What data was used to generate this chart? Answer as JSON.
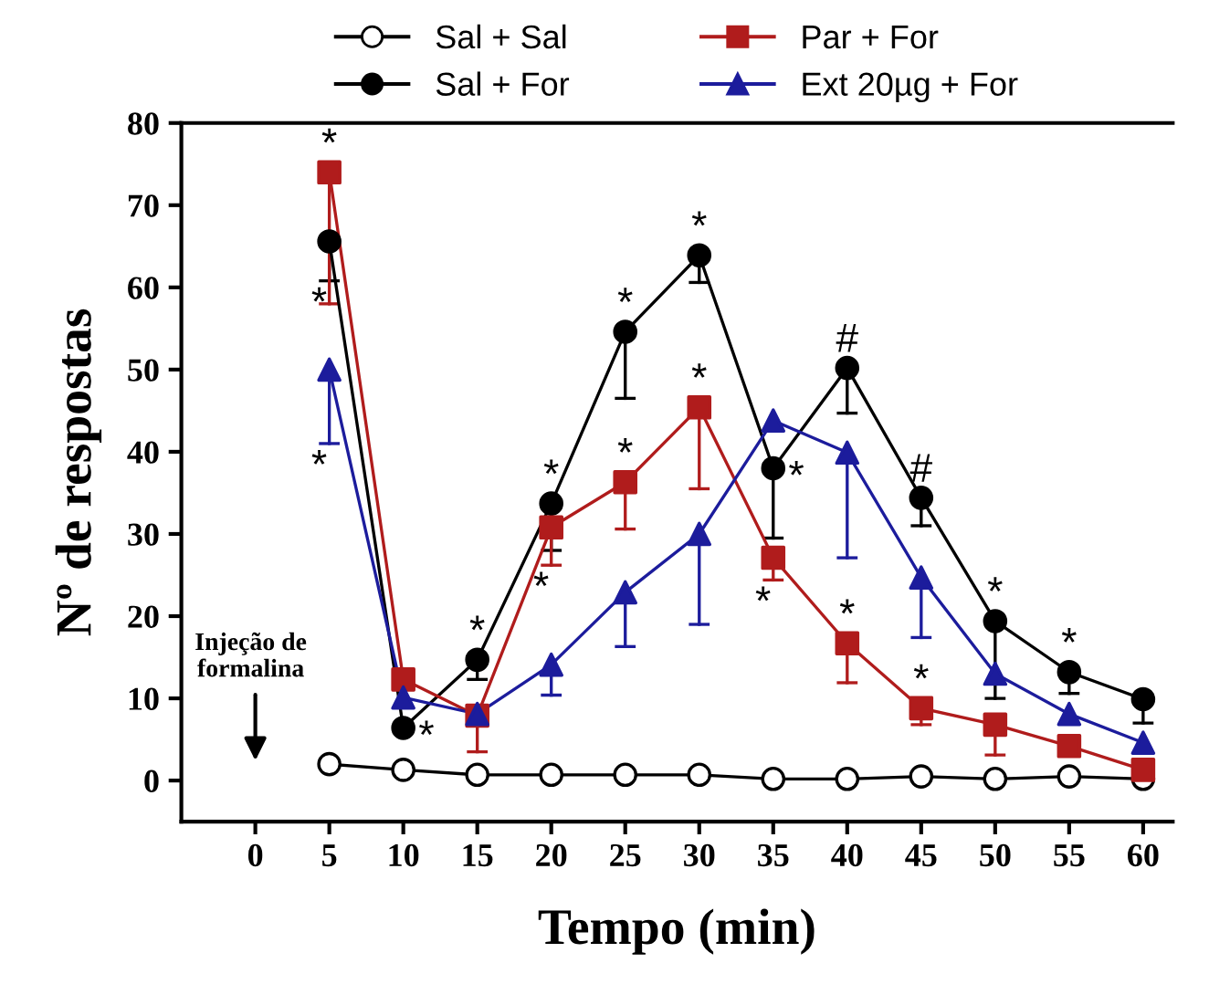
{
  "chart_data": {
    "type": "line",
    "xlabel": "Tempo (min)",
    "ylabel": "Nº de respostas",
    "x": [
      5,
      10,
      15,
      20,
      25,
      30,
      35,
      40,
      45,
      50,
      55,
      60
    ],
    "xlim": [
      -5,
      62
    ],
    "xticks": [
      0,
      5,
      10,
      15,
      20,
      25,
      30,
      35,
      40,
      45,
      50,
      55,
      60
    ],
    "ylim": [
      -5,
      80
    ],
    "yticks": [
      0,
      10,
      20,
      30,
      40,
      50,
      60,
      70,
      80
    ],
    "grid": false,
    "legend": "top",
    "line_style": "solid",
    "series": [
      {
        "name": "Sal + Sal",
        "color": "#000000",
        "marker": "circle",
        "colors": [
          "#ffffff",
          "#ffffff",
          "#ffffff",
          "#ffffff",
          "#ffffff",
          "#ffffff",
          "#ffffff",
          "#ffffff",
          "#ffffff",
          "#ffffff",
          "#ffffff",
          "#ffffff"
        ],
        "values": [
          2,
          1.3,
          0.7,
          0.7,
          0.7,
          0.7,
          0.2,
          0.2,
          0.5,
          0.2,
          0.5,
          0.2
        ]
      },
      {
        "name": "Sal + For",
        "color": "#000000",
        "marker": "circle",
        "values": [
          65.6,
          6.4,
          14.7,
          33.7,
          54.6,
          63.9,
          38,
          50.2,
          34.4,
          19.4,
          13.2,
          9.9
        ],
        "errors": [
          [
            60.8,
            65.6
          ],
          null,
          [
            12.3,
            14.7
          ],
          [
            28,
            33.7
          ],
          [
            46.5,
            54.6
          ],
          [
            60.6,
            63.9
          ],
          [
            29.5,
            38
          ],
          [
            44.7,
            50.2
          ],
          [
            31,
            34.4
          ],
          [
            10,
            19.4
          ],
          [
            10.6,
            13.2
          ],
          [
            7,
            9.9
          ]
        ]
      },
      {
        "name": "Par + For",
        "color": "#b01c1c",
        "marker": "square",
        "values": [
          74,
          12.3,
          7.9,
          30.8,
          36.3,
          45.4,
          27.1,
          16.7,
          8.8,
          6.8,
          4.2,
          1.3
        ],
        "errors": [
          [
            58,
            74
          ],
          null,
          [
            3.5,
            7.9
          ],
          [
            26.2,
            30.8
          ],
          [
            30.6,
            36.3
          ],
          [
            35.5,
            45.4
          ],
          [
            24.4,
            27.1
          ],
          [
            11.9,
            16.7
          ],
          [
            6.8,
            8.8
          ],
          [
            3.1,
            6.8
          ],
          null,
          null
        ]
      },
      {
        "name": "Ext 20µg + For",
        "color": "#1c1c9c",
        "marker": "triangle",
        "values": [
          50,
          10.1,
          8.1,
          14.1,
          22.9,
          30,
          43.8,
          39.9,
          24.7,
          13,
          8.1,
          4.6
        ],
        "errors": [
          [
            41,
            50
          ],
          null,
          null,
          [
            10.4,
            14.1
          ],
          [
            16.3,
            22.9
          ],
          [
            19,
            30
          ],
          null,
          [
            27.1,
            39.9
          ],
          [
            17.4,
            24.7
          ],
          null,
          null,
          null
        ]
      }
    ],
    "annotations": [
      "Injeção de\nformalina",
      {
        "text": "*",
        "x": 5,
        "y": 74
      },
      {
        "text": "*",
        "x": 5,
        "y": 60.8
      },
      {
        "text": "*",
        "x": 5,
        "y": 41
      },
      {
        "text": "*",
        "x": 10,
        "y": 6.4
      },
      {
        "text": "*",
        "x": 15,
        "y": 14.7
      },
      {
        "text": "*",
        "x": 20,
        "y": 33.7
      },
      {
        "text": "*",
        "x": 20,
        "y": 26.2
      },
      {
        "text": "*",
        "x": 25,
        "y": 54.6
      },
      {
        "text": "*",
        "x": 25,
        "y": 36.3
      },
      {
        "text": "*",
        "x": 30,
        "y": 63.9
      },
      {
        "text": "*",
        "x": 30,
        "y": 45.4
      },
      {
        "text": "*",
        "x": 35,
        "y": 38
      },
      {
        "text": "*",
        "x": 35,
        "y": 24.4
      },
      {
        "text": "#",
        "x": 40,
        "y": 50.2
      },
      {
        "text": "*",
        "x": 40,
        "y": 16.7
      },
      {
        "text": "#",
        "x": 45,
        "y": 34.4
      },
      {
        "text": "*",
        "x": 45,
        "y": 8.8
      },
      {
        "text": "*",
        "x": 50,
        "y": 19.4
      },
      {
        "text": "*",
        "x": 55,
        "y": 13.2
      }
    ]
  }
}
